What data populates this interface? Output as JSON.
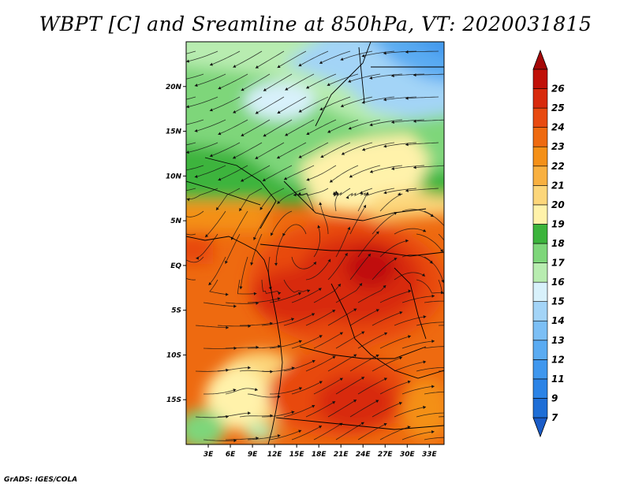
{
  "title": "WBPT [C] and Sreamline at 850hPa, VT: 2020031815",
  "credit": "GrADS: IGES/COLA",
  "map": {
    "lon_range": [
      0,
      35
    ],
    "lat_range": [
      -20,
      25
    ],
    "x_ticks": [
      {
        "value": 3,
        "label": "3E"
      },
      {
        "value": 6,
        "label": "6E"
      },
      {
        "value": 9,
        "label": "9E"
      },
      {
        "value": 12,
        "label": "12E"
      },
      {
        "value": 15,
        "label": "15E"
      },
      {
        "value": 18,
        "label": "18E"
      },
      {
        "value": 21,
        "label": "21E"
      },
      {
        "value": 24,
        "label": "24E"
      },
      {
        "value": 27,
        "label": "27E"
      },
      {
        "value": 30,
        "label": "30E"
      },
      {
        "value": 33,
        "label": "33E"
      }
    ],
    "y_ticks": [
      {
        "value": 20,
        "label": "20N"
      },
      {
        "value": 15,
        "label": "15N"
      },
      {
        "value": 10,
        "label": "10N"
      },
      {
        "value": 5,
        "label": "5N"
      },
      {
        "value": 0,
        "label": "EQ"
      },
      {
        "value": -5,
        "label": "5S"
      },
      {
        "value": -10,
        "label": "10S"
      },
      {
        "value": -15,
        "label": "15S"
      }
    ]
  },
  "colorbar": {
    "levels": [
      {
        "label": "7",
        "color": "#1e6ed6"
      },
      {
        "label": "9",
        "color": "#2b83e6"
      },
      {
        "label": "11",
        "color": "#3f97ee"
      },
      {
        "label": "12",
        "color": "#5aabf2"
      },
      {
        "label": "13",
        "color": "#7cbff5"
      },
      {
        "label": "14",
        "color": "#a3d4f7"
      },
      {
        "label": "15",
        "color": "#d8f1fb"
      },
      {
        "label": "16",
        "color": "#b8ecb0"
      },
      {
        "label": "17",
        "color": "#7ed67a"
      },
      {
        "label": "18",
        "color": "#3cb43c"
      },
      {
        "label": "19",
        "color": "#fff2aa"
      },
      {
        "label": "20",
        "color": "#fcd67a"
      },
      {
        "label": "21",
        "color": "#f8b040"
      },
      {
        "label": "22",
        "color": "#f49018"
      },
      {
        "label": "23",
        "color": "#ee6a10"
      },
      {
        "label": "24",
        "color": "#e84a10"
      },
      {
        "label": "25",
        "color": "#d82a0c"
      },
      {
        "label": "26",
        "color": "#c01008"
      }
    ],
    "under_color": "#1a5cc8",
    "over_color": "#a40808"
  }
}
